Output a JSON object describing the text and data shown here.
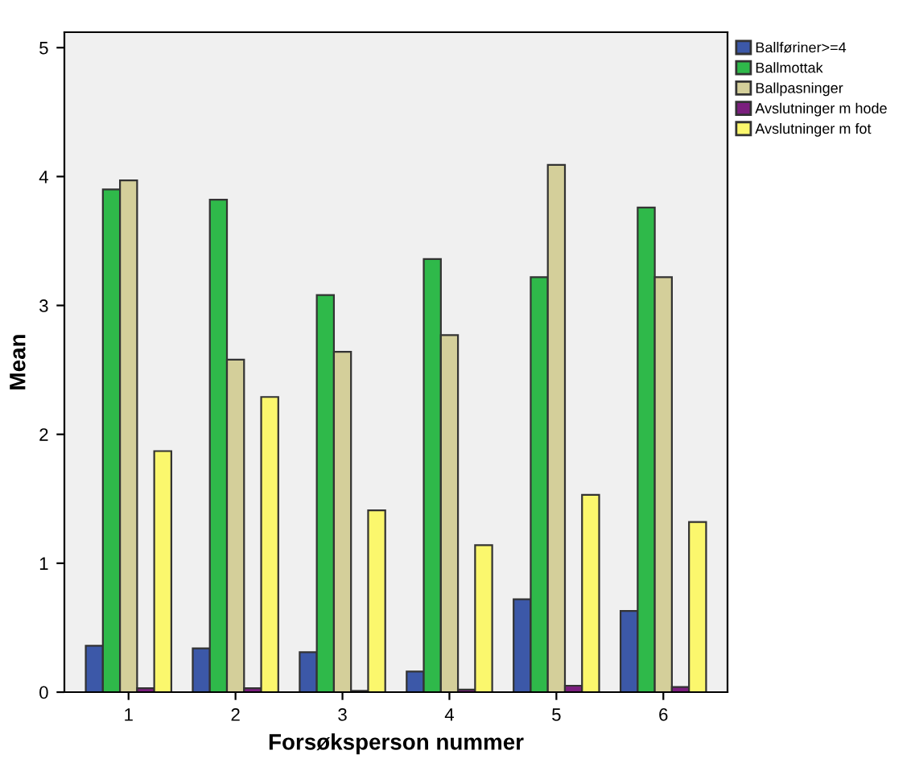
{
  "chart_data": {
    "type": "bar",
    "xlabel": "Forsøksperson nummer",
    "ylabel": "Mean",
    "categories": [
      "1",
      "2",
      "3",
      "4",
      "5",
      "6"
    ],
    "series": [
      {
        "name": "Ballføriner>=4",
        "color": "#3c58a8",
        "values": [
          0.36,
          0.34,
          0.31,
          0.16,
          0.72,
          0.63
        ]
      },
      {
        "name": "Ballmottak",
        "color": "#2fb94a",
        "values": [
          3.9,
          3.82,
          3.08,
          3.36,
          3.22,
          3.76
        ]
      },
      {
        "name": "Ballpasninger",
        "color": "#d4cf9a",
        "values": [
          3.97,
          2.58,
          2.64,
          2.77,
          4.09,
          3.22
        ]
      },
      {
        "name": "Avslutninger m hode",
        "color": "#7b1f7e",
        "values": [
          0.03,
          0.03,
          0.01,
          0.02,
          0.05,
          0.04
        ]
      },
      {
        "name": "Avslutninger m fot",
        "color": "#fbf76d",
        "values": [
          1.87,
          2.29,
          1.41,
          1.14,
          1.53,
          1.32
        ]
      }
    ],
    "ylim": [
      0,
      5.12
    ],
    "yticks": [
      0,
      1,
      2,
      3,
      4,
      5
    ],
    "grid": false,
    "legend": "top right"
  }
}
